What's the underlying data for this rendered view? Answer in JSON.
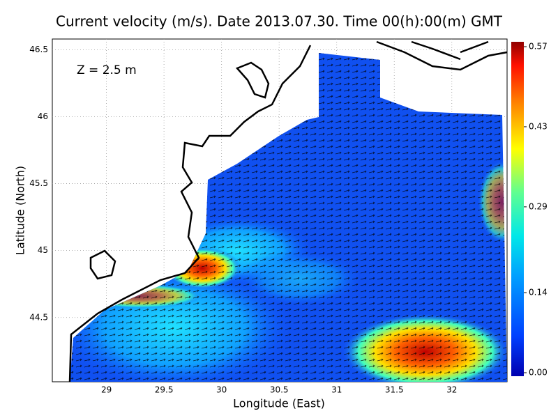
{
  "chart_data": {
    "type": "map",
    "title": "Current velocity (m/s). Date 2013.07.30. Time 00(h):00(m) GMT",
    "annotation": "Z = 2.5 m",
    "x_label": "Longitude (East)",
    "y_label": "Latitude (North)",
    "xlim": [
      28.53,
      32.48
    ],
    "ylim": [
      44.02,
      46.58
    ],
    "xticks": [
      29,
      29.5,
      30,
      30.5,
      31,
      31.5,
      32
    ],
    "yticks": [
      44.5,
      45,
      45.5,
      46,
      46.5
    ],
    "grid": true,
    "colorbar": {
      "lim": [
        0,
        0.57
      ],
      "ticks": [
        {
          "value": 0,
          "label": "0.00"
        },
        0.14,
        0.29,
        0.43,
        0.57
      ]
    }
  }
}
